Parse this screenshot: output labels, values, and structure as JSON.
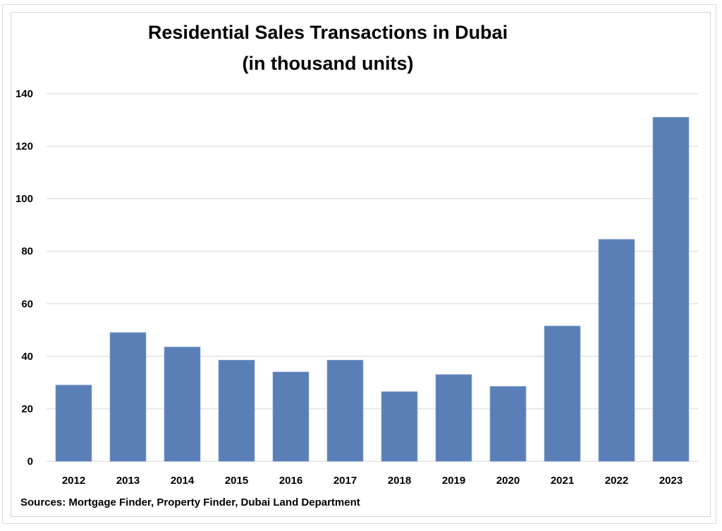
{
  "chart_data": {
    "type": "bar",
    "title": "Residential Sales Transactions in Dubai",
    "subtitle": "(in thousand units)",
    "xlabel": "",
    "ylabel": "",
    "categories": [
      "2012",
      "2013",
      "2014",
      "2015",
      "2016",
      "2017",
      "2018",
      "2019",
      "2020",
      "2021",
      "2022",
      "2023"
    ],
    "values": [
      29,
      49,
      43.5,
      38.5,
      34,
      38.5,
      26.5,
      33,
      28.5,
      51.5,
      84.5,
      131
    ],
    "ylim": [
      0,
      140
    ],
    "yticks": [
      0,
      20,
      40,
      60,
      80,
      100,
      120,
      140
    ],
    "grid": true,
    "legend": "none",
    "bar_color": "#5a7fb7",
    "grid_color": "#e3e3e3",
    "source_note": "Sources: Mortgage Finder, Property Finder, Dubai Land Department"
  }
}
